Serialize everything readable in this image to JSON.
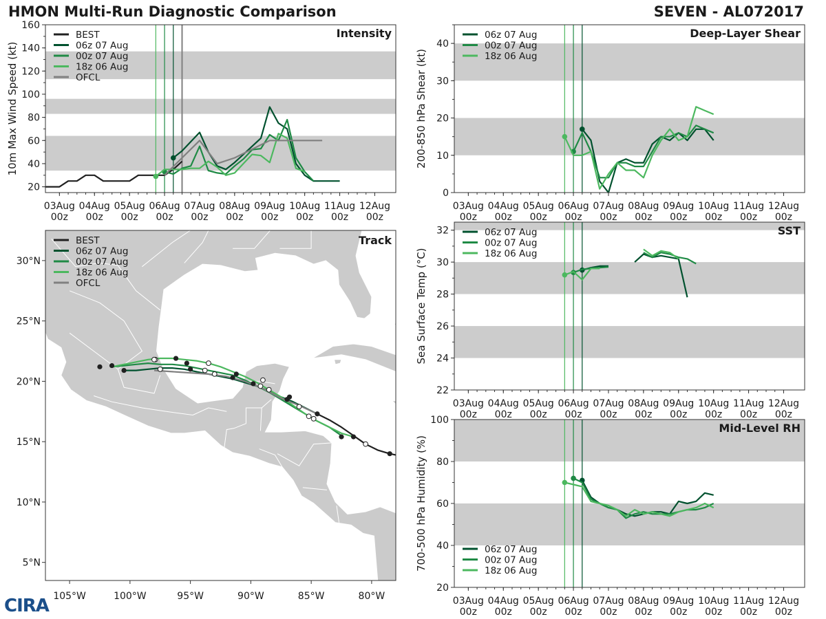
{
  "header": {
    "title": "HMON Multi-Run Diagnostic Comparison",
    "storm": "SEVEN - AL072017",
    "logo_text": "CIRA"
  },
  "colors": {
    "best": "#202020",
    "run_06z": "#00512e",
    "run_00z": "#1f8a45",
    "run_18z": "#4cb85f",
    "ofcl": "#808080",
    "band": "#cccccc",
    "land": "#cbcbcb",
    "border": "#ffffff"
  },
  "time_axis": {
    "tick_labels": [
      "03Aug\n00z",
      "04Aug\n00z",
      "05Aug\n00z",
      "06Aug\n00z",
      "07Aug\n00z",
      "08Aug\n00z",
      "09Aug\n00z",
      "10Aug\n00z",
      "11Aug\n00z",
      "12Aug\n00z"
    ],
    "range": [
      -3.4,
      6.6
    ],
    "init_lines": [
      {
        "t": -0.25,
        "color": "#4cb85f"
      },
      {
        "t": 0.0,
        "color": "#1f8a45"
      },
      {
        "t": 0.25,
        "color": "#00512e"
      }
    ]
  },
  "chart_data": [
    {
      "id": "intensity",
      "type": "line",
      "title": "Intensity",
      "ylabel": "10m Max Wind Speed (kt)",
      "ylim": [
        15,
        160
      ],
      "yticks": [
        20,
        40,
        60,
        80,
        100,
        120,
        140,
        160
      ],
      "bands": [
        [
          34,
          64
        ],
        [
          83,
          96
        ],
        [
          113,
          137
        ]
      ],
      "extra_vline": {
        "t": 0.5,
        "color": "#808080"
      },
      "legend": [
        "BEST",
        "06z 07 Aug",
        "00z 07 Aug",
        "18z 06 Aug",
        "OFCL"
      ],
      "series": [
        {
          "name": "BEST",
          "color": "best",
          "width": 2.2,
          "x": [
            -3.5,
            -3.0,
            -2.75,
            -2.5,
            -2.25,
            -2.0,
            -1.75,
            -1.5,
            -1.25,
            -1.0,
            -0.75,
            -0.5,
            -0.25,
            0.0,
            0.25,
            0.5
          ],
          "y": [
            20,
            20,
            25,
            25,
            30,
            30,
            25,
            25,
            25,
            25,
            30,
            30,
            30,
            30,
            35,
            42
          ]
        },
        {
          "name": "06z 07 Aug",
          "color": "run_06z",
          "width": 2.2,
          "dot": true,
          "x": [
            0.25,
            0.5,
            0.75,
            1.0,
            1.25,
            1.5,
            1.75,
            2.0,
            2.25,
            2.5,
            2.75,
            3.0,
            3.25,
            3.5,
            3.75,
            4.0,
            4.25,
            4.5,
            4.75,
            5.0
          ],
          "y": [
            45,
            51,
            59,
            67,
            50,
            38,
            35,
            41,
            48,
            55,
            62,
            89,
            75,
            70,
            40,
            30,
            25,
            25,
            25,
            25
          ]
        },
        {
          "name": "00z 07 Aug",
          "color": "run_00z",
          "width": 2.2,
          "dot": true,
          "x": [
            0.0,
            0.25,
            0.5,
            0.75,
            1.0,
            1.25,
            1.5,
            1.75,
            2.0,
            2.25,
            2.5,
            2.75,
            3.0,
            3.25,
            3.5,
            3.75,
            4.0,
            4.25
          ],
          "y": [
            33,
            31,
            36,
            38,
            55,
            34,
            32,
            31,
            38,
            44,
            52,
            53,
            65,
            60,
            78,
            45,
            33,
            25
          ]
        },
        {
          "name": "18z 06 Aug",
          "color": "run_18z",
          "width": 2.2,
          "dot": true,
          "x": [
            -0.25,
            0.0,
            0.25,
            0.5,
            0.75,
            1.0,
            1.25,
            1.5,
            1.75,
            2.0,
            2.25,
            2.5,
            2.75,
            3.0,
            3.25,
            3.5,
            3.75,
            4.0
          ],
          "y": [
            29,
            35,
            35,
            35,
            36,
            36,
            42,
            37,
            30,
            32,
            40,
            48,
            47,
            41,
            66,
            62,
            36,
            33
          ]
        },
        {
          "name": "OFCL",
          "color": "ofcl",
          "width": 2.2,
          "x": [
            0.0,
            0.5,
            1.0,
            1.5,
            2.0,
            3.0,
            4.0,
            4.5
          ],
          "y": [
            30,
            45,
            60,
            40,
            45,
            60,
            60,
            60
          ]
        }
      ]
    },
    {
      "id": "shear",
      "type": "line",
      "title": "Deep-Layer Shear",
      "ylabel": "200-850 hPa Shear (kt)",
      "ylim": [
        0,
        45
      ],
      "yticks": [
        0,
        10,
        20,
        30,
        40
      ],
      "bands": [
        [
          10,
          20
        ],
        [
          30,
          40
        ]
      ],
      "legend": [
        "06z 07 Aug",
        "00z 07 Aug",
        "18z 06 Aug"
      ],
      "series": [
        {
          "name": "06z 07 Aug",
          "color": "run_06z",
          "width": 2.2,
          "dot": true,
          "x": [
            0.25,
            0.5,
            0.75,
            1.0,
            1.25,
            1.5,
            1.75,
            2.0,
            2.25,
            2.5,
            2.75,
            3.0,
            3.25,
            3.5,
            3.75,
            4.0
          ],
          "y": [
            17,
            14,
            3,
            0,
            8,
            9,
            8,
            8,
            13,
            15,
            14,
            16,
            14,
            17,
            17,
            14
          ]
        },
        {
          "name": "00z 07 Aug",
          "color": "run_00z",
          "width": 2.2,
          "dot": true,
          "x": [
            0.0,
            0.25,
            0.5,
            0.75,
            1.0,
            1.25,
            1.5,
            1.75,
            2.0,
            2.25,
            2.5,
            2.75,
            3.0,
            3.25,
            3.5,
            3.75,
            4.0
          ],
          "y": [
            11,
            16,
            11,
            4,
            4,
            8,
            8,
            7,
            7,
            11,
            15,
            15,
            16,
            15,
            18,
            17,
            16
          ]
        },
        {
          "name": "18z 06 Aug",
          "color": "run_18z",
          "width": 2.2,
          "dot": true,
          "x": [
            -0.25,
            0.0,
            0.25,
            0.5,
            0.75,
            1.0,
            1.25,
            1.5,
            1.75,
            2.0,
            2.25,
            2.5,
            2.75,
            3.0,
            3.25,
            3.5,
            3.75,
            4.0
          ],
          "y": [
            15,
            10,
            10,
            11,
            1,
            5,
            8,
            6,
            6,
            4,
            10,
            14,
            17,
            14,
            15,
            23,
            22,
            21
          ]
        }
      ]
    },
    {
      "id": "sst",
      "type": "line",
      "title": "SST",
      "ylabel": "Sea Surface Temp (°C)",
      "ylim": [
        22,
        32.5
      ],
      "yticks": [
        22,
        24,
        26,
        28,
        30,
        32
      ],
      "bands": [
        [
          24,
          26
        ],
        [
          28,
          30
        ],
        [
          32,
          34
        ]
      ],
      "legend": [
        "06z 07 Aug",
        "00z 07 Aug",
        "18z 06 Aug"
      ],
      "series": [
        {
          "name": "06z 07 Aug",
          "color": "run_06z",
          "width": 2.2,
          "dot": true,
          "x": [
            0.25,
            0.5,
            0.75,
            1.0,
            null,
            1.75,
            2.0,
            2.25,
            2.5,
            2.75,
            3.0,
            3.25
          ],
          "y": [
            29.5,
            29.65,
            29.75,
            29.75,
            null,
            30.0,
            30.5,
            30.3,
            30.4,
            30.3,
            30.2,
            27.8
          ]
        },
        {
          "name": "00z 07 Aug",
          "color": "run_00z",
          "width": 2.2,
          "dot": true,
          "x": [
            0.0,
            0.25,
            0.5,
            0.75,
            1.0,
            null,
            2.0,
            2.25,
            2.5,
            2.75,
            3.0,
            3.25,
            3.5
          ],
          "y": [
            29.35,
            29.55,
            29.6,
            29.65,
            29.7,
            null,
            30.6,
            30.3,
            30.6,
            30.5,
            30.3,
            30.2,
            29.9
          ]
        },
        {
          "name": "18z 06 Aug",
          "color": "run_18z",
          "width": 2.2,
          "dot": true,
          "x": [
            -0.25,
            0.0,
            0.25,
            0.5,
            0.75,
            null,
            2.0,
            2.25,
            2.5,
            2.75,
            3.0
          ],
          "y": [
            29.2,
            29.4,
            28.9,
            29.6,
            29.6,
            null,
            30.8,
            30.4,
            30.7,
            30.6,
            30.2
          ]
        }
      ]
    },
    {
      "id": "rh",
      "type": "line",
      "title": "Mid-Level RH",
      "ylabel": "700-500 hPa Humidity (%)",
      "ylim": [
        20,
        100
      ],
      "yticks": [
        20,
        40,
        60,
        80,
        100
      ],
      "bands": [
        [
          40,
          60
        ],
        [
          80,
          100
        ]
      ],
      "legend": [
        "06z 07 Aug",
        "00z 07 Aug",
        "18z 06 Aug"
      ],
      "series": [
        {
          "name": "06z 07 Aug",
          "color": "run_06z",
          "width": 2.2,
          "dot": true,
          "x": [
            0.25,
            0.5,
            0.75,
            1.0,
            1.25,
            1.5,
            1.75,
            2.0,
            2.25,
            2.5,
            2.75,
            3.0,
            3.25,
            3.5,
            3.75,
            4.0
          ],
          "y": [
            71,
            63,
            60,
            58,
            57,
            55,
            54,
            55,
            56,
            56,
            55,
            61,
            60,
            61,
            65,
            64
          ]
        },
        {
          "name": "00z 07 Aug",
          "color": "run_00z",
          "width": 2.2,
          "dot": true,
          "x": [
            0.0,
            0.25,
            0.5,
            0.75,
            1.0,
            1.25,
            1.5,
            1.75,
            2.0,
            2.25,
            2.5,
            2.75,
            3.0,
            3.25,
            3.5,
            3.75,
            4.0
          ],
          "y": [
            72,
            70,
            62,
            60,
            58,
            57,
            53,
            55,
            56,
            55,
            55,
            55,
            56,
            57,
            57,
            58,
            60
          ]
        },
        {
          "name": "18z 06 Aug",
          "color": "run_18z",
          "width": 2.2,
          "dot": true,
          "x": [
            -0.25,
            0.0,
            0.25,
            0.5,
            0.75,
            1.0,
            1.25,
            1.5,
            1.75,
            2.0,
            2.25,
            2.5,
            2.75,
            3.0,
            3.25,
            3.5,
            3.75,
            4.0
          ],
          "y": [
            70,
            69,
            68,
            61,
            60,
            59,
            57,
            54,
            57,
            55,
            56,
            55,
            54,
            56,
            57,
            58,
            60,
            58
          ]
        }
      ]
    },
    {
      "id": "track",
      "type": "scatter",
      "title": "Track",
      "xlim": [
        -107,
        -78
      ],
      "ylim": [
        3.5,
        32.5
      ],
      "xticks": [
        -105,
        -100,
        -95,
        -90,
        -85,
        -80
      ],
      "xtick_labels": [
        "105°W",
        "100°W",
        "95°W",
        "90°W",
        "85°W",
        "80°W"
      ],
      "yticks": [
        5,
        10,
        15,
        20,
        25,
        30
      ],
      "ytick_labels": [
        "5°N",
        "10°N",
        "15°N",
        "20°N",
        "25°N",
        "30°N"
      ],
      "legend": [
        "BEST",
        "06z 07 Aug",
        "00z 07 Aug",
        "18z 06 Aug",
        "OFCL"
      ],
      "series": [
        {
          "name": "BEST",
          "color": "best",
          "width": 2.2,
          "lon": [
            -77.5,
            -78.5,
            -79.5,
            -80.5,
            -81.5,
            -82.5,
            -83.5,
            -84.5
          ],
          "lat": [
            13.8,
            14.0,
            14.3,
            14.8,
            15.5,
            16.2,
            16.8,
            17.3
          ],
          "filled": [
            [
              -78.5,
              14.0
            ],
            [
              -82.5,
              15.4
            ]
          ],
          "open": [
            [
              -80.5,
              14.8
            ]
          ]
        },
        {
          "name": "06z 07 Aug",
          "color": "run_06z",
          "width": 2.2,
          "lon": [
            -84.5,
            -85.5,
            -86.5,
            -87.5,
            -88.5,
            -89.5,
            -90.5,
            -91.5,
            -92.5,
            -93.5,
            -94.5,
            -95.5,
            -96.5,
            -97.5,
            -98.5,
            -99.5,
            -100.5
          ],
          "lat": [
            17.3,
            17.8,
            18.3,
            18.7,
            19.2,
            19.6,
            19.9,
            20.2,
            20.4,
            20.6,
            20.8,
            21.0,
            21.1,
            21.1,
            21.0,
            20.9,
            20.9
          ],
          "filled": [
            [
              -87.0,
              18.5
            ],
            [
              -89.8,
              19.8
            ],
            [
              -91.5,
              20.3
            ],
            [
              -95.0,
              21.0
            ],
            [
              -100.5,
              20.9
            ]
          ],
          "open": [
            [
              -86.0,
              17.9
            ],
            [
              -88.5,
              19.3
            ],
            [
              -93.0,
              20.6
            ],
            [
              -97.5,
              21.0
            ]
          ]
        },
        {
          "name": "00z 07 Aug",
          "color": "run_00z",
          "width": 2.2,
          "lon": [
            -82.5,
            -83.5,
            -84.5,
            -85.5,
            -86.5,
            -87.5,
            -88.5,
            -89.5,
            -90.5,
            -91.5,
            -92.5,
            -93.5,
            -94.5,
            -95.5,
            -96.5,
            -97.5,
            -98.5,
            -99.5,
            -100.5,
            -101.5
          ],
          "lat": [
            15.5,
            16.2,
            16.7,
            17.3,
            17.9,
            18.5,
            19.1,
            19.6,
            20.1,
            20.5,
            20.7,
            20.9,
            21.1,
            21.3,
            21.4,
            21.4,
            21.5,
            21.4,
            21.3,
            21.2
          ],
          "filled": [
            [
              -86.8,
              18.7
            ],
            [
              -91.2,
              20.6
            ],
            [
              -95.3,
              21.5
            ],
            [
              -102.5,
              21.2
            ]
          ],
          "open": [
            [
              -84.8,
              16.9
            ],
            [
              -89.2,
              19.6
            ],
            [
              -93.8,
              20.9
            ],
            [
              -97.9,
              21.8
            ]
          ]
        },
        {
          "name": "18z 06 Aug",
          "color": "run_18z",
          "width": 2.2,
          "lon": [
            -81.5,
            -82.5,
            -83.5,
            -84.5,
            -85.5,
            -86.5,
            -87.5,
            -88.5,
            -89.5,
            -90.5,
            -91.5,
            -92.5,
            -93.5,
            -94.5,
            -95.5,
            -96.5,
            -97.5,
            -98.5,
            -99.5,
            -100.5,
            -101.5
          ],
          "lat": [
            15.4,
            15.7,
            16.2,
            16.7,
            17.3,
            18.0,
            18.7,
            19.3,
            19.9,
            20.4,
            20.8,
            21.2,
            21.5,
            21.7,
            21.8,
            21.9,
            21.9,
            21.8,
            21.6,
            21.4,
            21.2
          ],
          "filled": [
            [
              -81.5,
              15.4
            ],
            [
              -96.2,
              21.9
            ],
            [
              -101.5,
              21.3
            ]
          ],
          "open": [
            [
              -89.0,
              20.1
            ],
            [
              -93.5,
              21.5
            ],
            [
              -98.0,
              21.8
            ]
          ]
        },
        {
          "name": "OFCL",
          "color": "ofcl",
          "width": 2.2,
          "lon": [
            -84.5,
            -86.0,
            -87.5,
            -89.0,
            -90.5,
            -92.0,
            -93.5,
            -95.0,
            -96.5,
            -98.0
          ],
          "lat": [
            17.3,
            18.0,
            18.6,
            19.4,
            20.0,
            20.4,
            20.6,
            20.7,
            20.8,
            20.9
          ],
          "filled": [
            [
              -84.5,
              17.3
            ]
          ],
          "open": [
            [
              -85.2,
              17.1
            ]
          ]
        }
      ]
    }
  ]
}
